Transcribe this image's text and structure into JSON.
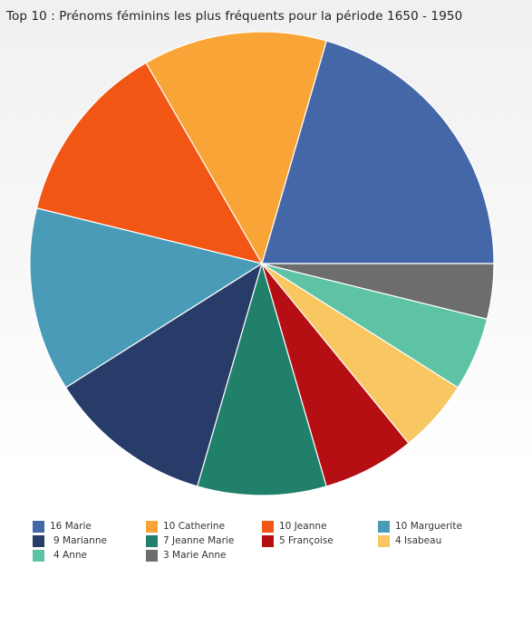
{
  "chart_data": {
    "type": "pie",
    "title": "Top 10 : Prénoms féminins les plus fréquents pour la période 1650 - 1950",
    "slices": [
      {
        "name": "Marie",
        "value": 16,
        "label": "16 Marie",
        "color": "#4467a8"
      },
      {
        "name": "Catherine",
        "value": 10,
        "label": "10 Catherine",
        "color": "#f9a436"
      },
      {
        "name": "Jeanne",
        "value": 10,
        "label": "10 Jeanne",
        "color": "#f25614"
      },
      {
        "name": "Marguerite",
        "value": 10,
        "label": "10 Marguerite",
        "color": "#4a9bb7"
      },
      {
        "name": "Marianne",
        "value": 9,
        "label": "9 Marianne",
        "color": "#283c69"
      },
      {
        "name": "Jeanne Marie",
        "value": 7,
        "label": "7 Jeanne Marie",
        "color": "#20806a"
      },
      {
        "name": "Françoise",
        "value": 5,
        "label": "5 Françoise",
        "color": "#b50f13"
      },
      {
        "name": "Isabeau",
        "value": 4,
        "label": "4 Isabeau",
        "color": "#f8c762"
      },
      {
        "name": "Anne",
        "value": 4,
        "label": "4 Anne",
        "color": "#5ec2a5"
      },
      {
        "name": "Marie Anne",
        "value": 3,
        "label": "3 Marie Anne",
        "color": "#6d6d6d"
      }
    ],
    "legend_position": "bottom"
  }
}
